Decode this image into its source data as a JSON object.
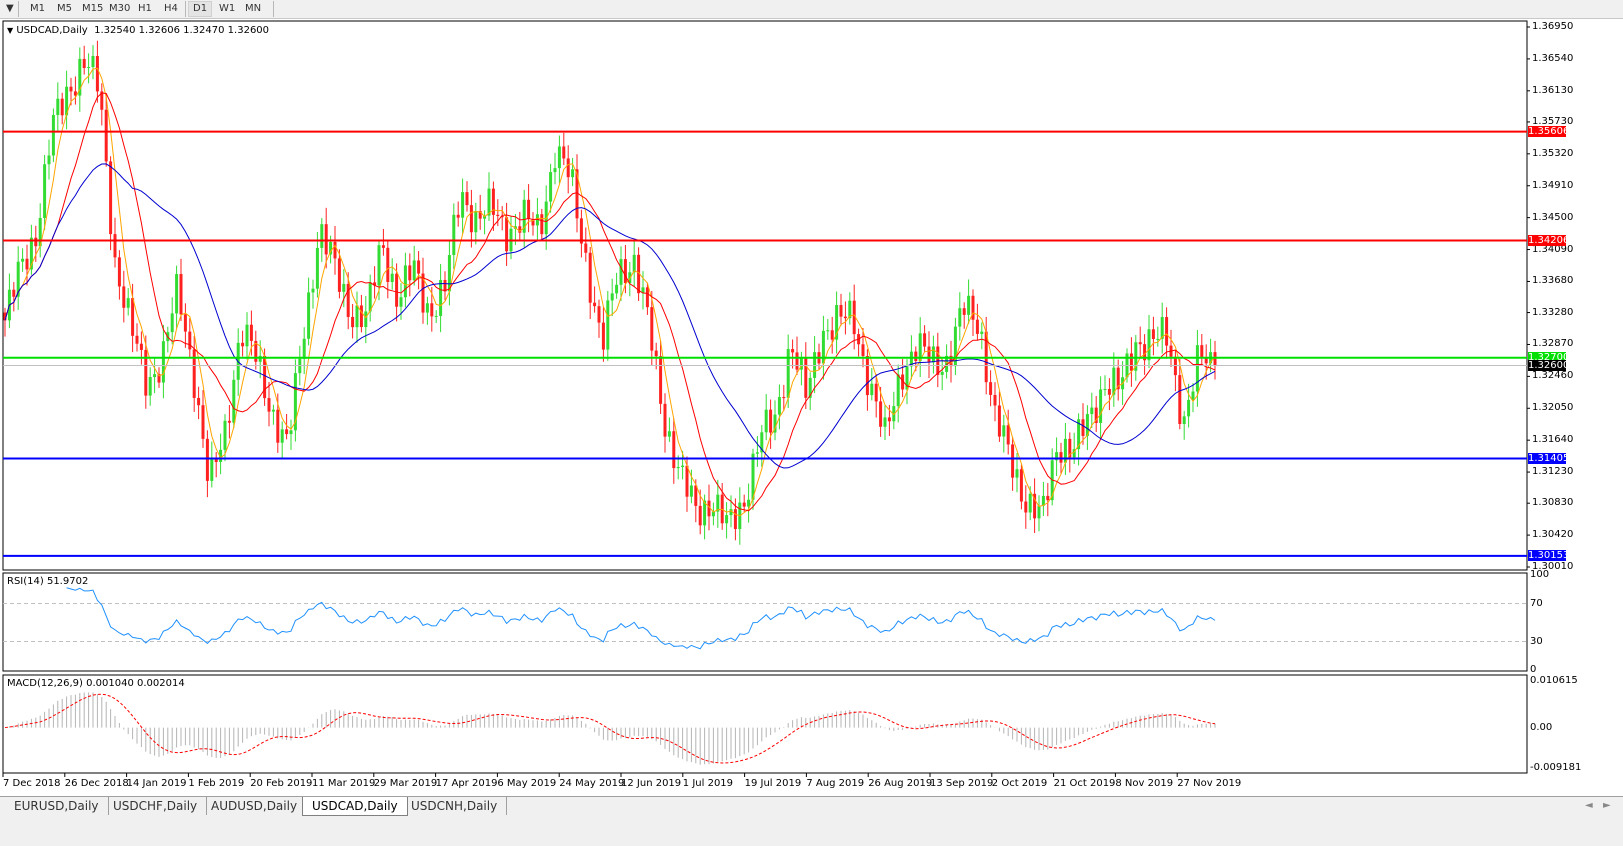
{
  "toolbar": {
    "menu_arrow": "▼",
    "timeframes": [
      "M1",
      "M5",
      "M15",
      "M30",
      "H1",
      "H4",
      "D1",
      "W1",
      "MN"
    ],
    "active_timeframe": "D1"
  },
  "chart": {
    "header_arrow": "▼",
    "symbol_label": "USDCAD,Daily",
    "ohlc": "1.32540 1.32606 1.32470 1.32600",
    "colors": {
      "bull": "#32dc32",
      "bear": "#ff2020",
      "ma_fast": "#ffa500",
      "ma_mid": "#ff0000",
      "ma_slow": "#0000d0",
      "rsi": "#1e90ff",
      "macd_hist": "#b4b4b4",
      "macd_signal": "#ff0000"
    }
  },
  "chart_data": {
    "type": "candlestick",
    "closes": [
      1.3318,
      1.3383,
      1.3434,
      1.3563,
      1.3614,
      1.3653,
      1.3614,
      1.3396,
      1.3306,
      1.3241,
      1.3267,
      1.3357,
      1.3254,
      1.31,
      1.3177,
      1.3306,
      1.3267,
      1.3203,
      1.3151,
      1.3306,
      1.3434,
      1.3383,
      1.3331,
      1.3318,
      1.3421,
      1.3344,
      1.3383,
      1.3331,
      1.3357,
      1.3486,
      1.3447,
      1.346,
      1.3434,
      1.3447,
      1.3434,
      1.3537,
      1.3498,
      1.3396,
      1.328,
      1.3383,
      1.3396,
      1.3306,
      1.319,
      1.3113,
      1.3074,
      1.3087,
      1.3049,
      1.3087,
      1.3164,
      1.319,
      1.3293,
      1.3216,
      1.3306,
      1.3318,
      1.3318,
      1.3241,
      1.3164,
      1.3254,
      1.328,
      1.3267,
      1.3267,
      1.3331,
      1.3318,
      1.319,
      1.3139,
      1.3087,
      1.3061,
      1.3164,
      1.3151,
      1.319,
      1.3241,
      1.3228,
      1.3293,
      1.3293,
      1.3293,
      1.319,
      1.3267,
      1.326
    ],
    "price_axis": {
      "ticks": [
        "1.36950",
        "1.36540",
        "1.36130",
        "1.35730",
        "1.35320",
        "1.34910",
        "1.34500",
        "1.34090",
        "1.33680",
        "1.33280",
        "1.32870",
        "1.32460",
        "1.32050",
        "1.31640",
        "1.31230",
        "1.30830",
        "1.30420",
        "1.30010"
      ],
      "range": [
        1.3001,
        1.3695
      ]
    },
    "levels": [
      {
        "value": "1.35606",
        "color": "#ff0000"
      },
      {
        "value": "1.34206",
        "color": "#ff0000"
      },
      {
        "value": "1.32700",
        "color": "#00e000"
      },
      {
        "value": "1.32600",
        "color": "#000000",
        "bid": true
      },
      {
        "value": "1.31405",
        "color": "#0000ff"
      },
      {
        "value": "1.30153",
        "color": "#0000ff"
      }
    ],
    "date_ticks": [
      "7 Dec 2018",
      "26 Dec 2018",
      "14 Jan 2019",
      "1 Feb 2019",
      "20 Feb 2019",
      "11 Mar 2019",
      "29 Mar 2019",
      "17 Apr 2019",
      "6 May 2019",
      "24 May 2019",
      "12 Jun 2019",
      "1 Jul 2019",
      "19 Jul 2019",
      "7 Aug 2019",
      "26 Aug 2019",
      "13 Sep 2019",
      "2 Oct 2019",
      "21 Oct 2019",
      "8 Nov 2019",
      "27 Nov 2019"
    ]
  },
  "rsi": {
    "label": "RSI(14) 51.9702",
    "ticks": [
      "100",
      "70",
      "30",
      "0"
    ]
  },
  "macd": {
    "label": "MACD(12,26,9) 0.001040 0.002014",
    "ticks": [
      "0.010615",
      "0.00",
      "-0.009181"
    ],
    "range": [
      -0.009181,
      0.010615
    ]
  },
  "tabs": [
    {
      "label": "EURUSD,Daily",
      "active": false
    },
    {
      "label": "USDCHF,Daily",
      "active": false
    },
    {
      "label": "AUDUSD,Daily",
      "active": false
    },
    {
      "label": "USDCAD,Daily",
      "active": true
    },
    {
      "label": "USDCNH,Daily",
      "active": false
    }
  ],
  "tab_scroll": {
    "left": "◄",
    "right": "►"
  }
}
